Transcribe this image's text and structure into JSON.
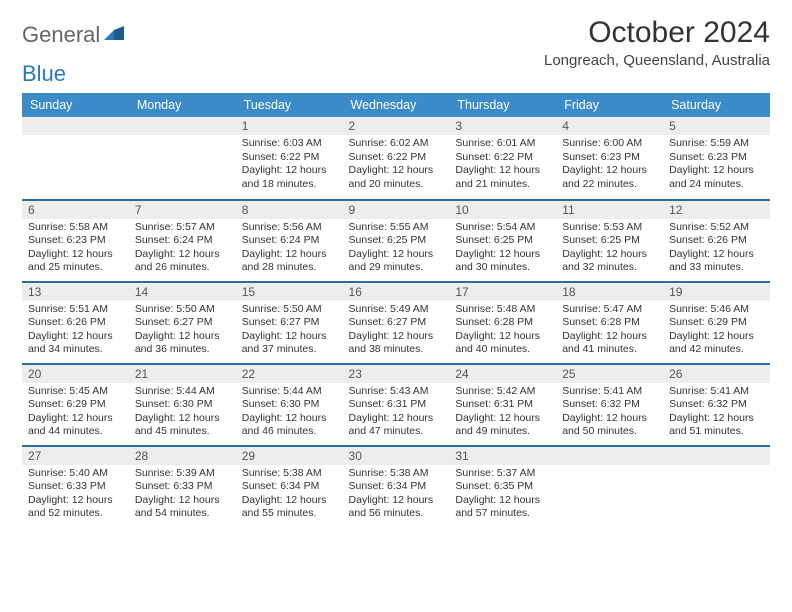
{
  "logo": {
    "part1": "General",
    "part2": "Blue"
  },
  "title": "October 2024",
  "location": "Longreach, Queensland, Australia",
  "colors": {
    "header_bg": "#3b8bc9",
    "header_text": "#ffffff",
    "daynum_bg": "#ededed",
    "rule": "#2a6da0",
    "logo_gray": "#666666",
    "logo_blue": "#2a7ab8"
  },
  "columns": [
    "Sunday",
    "Monday",
    "Tuesday",
    "Wednesday",
    "Thursday",
    "Friday",
    "Saturday"
  ],
  "weeks": [
    [
      {
        "n": "",
        "sr": "",
        "ss": "",
        "dl": ""
      },
      {
        "n": "",
        "sr": "",
        "ss": "",
        "dl": ""
      },
      {
        "n": "1",
        "sr": "Sunrise: 6:03 AM",
        "ss": "Sunset: 6:22 PM",
        "dl": "Daylight: 12 hours and 18 minutes."
      },
      {
        "n": "2",
        "sr": "Sunrise: 6:02 AM",
        "ss": "Sunset: 6:22 PM",
        "dl": "Daylight: 12 hours and 20 minutes."
      },
      {
        "n": "3",
        "sr": "Sunrise: 6:01 AM",
        "ss": "Sunset: 6:22 PM",
        "dl": "Daylight: 12 hours and 21 minutes."
      },
      {
        "n": "4",
        "sr": "Sunrise: 6:00 AM",
        "ss": "Sunset: 6:23 PM",
        "dl": "Daylight: 12 hours and 22 minutes."
      },
      {
        "n": "5",
        "sr": "Sunrise: 5:59 AM",
        "ss": "Sunset: 6:23 PM",
        "dl": "Daylight: 12 hours and 24 minutes."
      }
    ],
    [
      {
        "n": "6",
        "sr": "Sunrise: 5:58 AM",
        "ss": "Sunset: 6:23 PM",
        "dl": "Daylight: 12 hours and 25 minutes."
      },
      {
        "n": "7",
        "sr": "Sunrise: 5:57 AM",
        "ss": "Sunset: 6:24 PM",
        "dl": "Daylight: 12 hours and 26 minutes."
      },
      {
        "n": "8",
        "sr": "Sunrise: 5:56 AM",
        "ss": "Sunset: 6:24 PM",
        "dl": "Daylight: 12 hours and 28 minutes."
      },
      {
        "n": "9",
        "sr": "Sunrise: 5:55 AM",
        "ss": "Sunset: 6:25 PM",
        "dl": "Daylight: 12 hours and 29 minutes."
      },
      {
        "n": "10",
        "sr": "Sunrise: 5:54 AM",
        "ss": "Sunset: 6:25 PM",
        "dl": "Daylight: 12 hours and 30 minutes."
      },
      {
        "n": "11",
        "sr": "Sunrise: 5:53 AM",
        "ss": "Sunset: 6:25 PM",
        "dl": "Daylight: 12 hours and 32 minutes."
      },
      {
        "n": "12",
        "sr": "Sunrise: 5:52 AM",
        "ss": "Sunset: 6:26 PM",
        "dl": "Daylight: 12 hours and 33 minutes."
      }
    ],
    [
      {
        "n": "13",
        "sr": "Sunrise: 5:51 AM",
        "ss": "Sunset: 6:26 PM",
        "dl": "Daylight: 12 hours and 34 minutes."
      },
      {
        "n": "14",
        "sr": "Sunrise: 5:50 AM",
        "ss": "Sunset: 6:27 PM",
        "dl": "Daylight: 12 hours and 36 minutes."
      },
      {
        "n": "15",
        "sr": "Sunrise: 5:50 AM",
        "ss": "Sunset: 6:27 PM",
        "dl": "Daylight: 12 hours and 37 minutes."
      },
      {
        "n": "16",
        "sr": "Sunrise: 5:49 AM",
        "ss": "Sunset: 6:27 PM",
        "dl": "Daylight: 12 hours and 38 minutes."
      },
      {
        "n": "17",
        "sr": "Sunrise: 5:48 AM",
        "ss": "Sunset: 6:28 PM",
        "dl": "Daylight: 12 hours and 40 minutes."
      },
      {
        "n": "18",
        "sr": "Sunrise: 5:47 AM",
        "ss": "Sunset: 6:28 PM",
        "dl": "Daylight: 12 hours and 41 minutes."
      },
      {
        "n": "19",
        "sr": "Sunrise: 5:46 AM",
        "ss": "Sunset: 6:29 PM",
        "dl": "Daylight: 12 hours and 42 minutes."
      }
    ],
    [
      {
        "n": "20",
        "sr": "Sunrise: 5:45 AM",
        "ss": "Sunset: 6:29 PM",
        "dl": "Daylight: 12 hours and 44 minutes."
      },
      {
        "n": "21",
        "sr": "Sunrise: 5:44 AM",
        "ss": "Sunset: 6:30 PM",
        "dl": "Daylight: 12 hours and 45 minutes."
      },
      {
        "n": "22",
        "sr": "Sunrise: 5:44 AM",
        "ss": "Sunset: 6:30 PM",
        "dl": "Daylight: 12 hours and 46 minutes."
      },
      {
        "n": "23",
        "sr": "Sunrise: 5:43 AM",
        "ss": "Sunset: 6:31 PM",
        "dl": "Daylight: 12 hours and 47 minutes."
      },
      {
        "n": "24",
        "sr": "Sunrise: 5:42 AM",
        "ss": "Sunset: 6:31 PM",
        "dl": "Daylight: 12 hours and 49 minutes."
      },
      {
        "n": "25",
        "sr": "Sunrise: 5:41 AM",
        "ss": "Sunset: 6:32 PM",
        "dl": "Daylight: 12 hours and 50 minutes."
      },
      {
        "n": "26",
        "sr": "Sunrise: 5:41 AM",
        "ss": "Sunset: 6:32 PM",
        "dl": "Daylight: 12 hours and 51 minutes."
      }
    ],
    [
      {
        "n": "27",
        "sr": "Sunrise: 5:40 AM",
        "ss": "Sunset: 6:33 PM",
        "dl": "Daylight: 12 hours and 52 minutes."
      },
      {
        "n": "28",
        "sr": "Sunrise: 5:39 AM",
        "ss": "Sunset: 6:33 PM",
        "dl": "Daylight: 12 hours and 54 minutes."
      },
      {
        "n": "29",
        "sr": "Sunrise: 5:38 AM",
        "ss": "Sunset: 6:34 PM",
        "dl": "Daylight: 12 hours and 55 minutes."
      },
      {
        "n": "30",
        "sr": "Sunrise: 5:38 AM",
        "ss": "Sunset: 6:34 PM",
        "dl": "Daylight: 12 hours and 56 minutes."
      },
      {
        "n": "31",
        "sr": "Sunrise: 5:37 AM",
        "ss": "Sunset: 6:35 PM",
        "dl": "Daylight: 12 hours and 57 minutes."
      },
      {
        "n": "",
        "sr": "",
        "ss": "",
        "dl": ""
      },
      {
        "n": "",
        "sr": "",
        "ss": "",
        "dl": ""
      }
    ]
  ]
}
